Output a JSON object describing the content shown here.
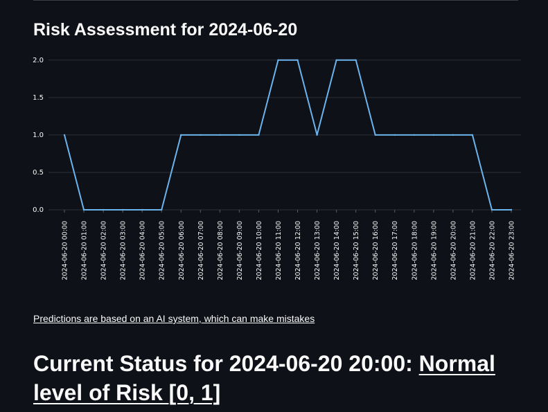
{
  "chart_data": {
    "type": "line",
    "title": "Risk Assessment for 2024-06-20",
    "xlabel": "",
    "ylabel": "",
    "ylim": [
      0,
      2.1
    ],
    "yticks": [
      "0.0",
      "0.5",
      "1.0",
      "1.5",
      "2.0"
    ],
    "ytick_values": [
      0,
      0.5,
      1,
      1.5,
      2
    ],
    "x": [
      "2024-06-20 00:00",
      "2024-06-20 01:00",
      "2024-06-20 02:00",
      "2024-06-20 03:00",
      "2024-06-20 04:00",
      "2024-06-20 05:00",
      "2024-06-20 06:00",
      "2024-06-20 07:00",
      "2024-06-20 08:00",
      "2024-06-20 09:00",
      "2024-06-20 10:00",
      "2024-06-20 11:00",
      "2024-06-20 12:00",
      "2024-06-20 13:00",
      "2024-06-20 14:00",
      "2024-06-20 15:00",
      "2024-06-20 16:00",
      "2024-06-20 17:00",
      "2024-06-20 18:00",
      "2024-06-20 19:00",
      "2024-06-20 20:00",
      "2024-06-20 21:00",
      "2024-06-20 22:00",
      "2024-06-20 23:00"
    ],
    "series": [
      {
        "values": [
          1,
          0,
          0,
          0,
          0,
          0,
          1,
          1,
          1,
          1,
          1,
          2,
          2,
          1,
          2,
          2,
          1,
          1,
          1,
          1,
          1,
          1,
          0,
          0
        ]
      }
    ],
    "grid": true,
    "line_color": "#6cb4ee"
  },
  "disclaimer": "Predictions are based on an AI system, which can make mistakes",
  "status": {
    "prefix": "Current Status for 2024-06-20 20:00: ",
    "level": "Normal level of Risk [0, 1]"
  },
  "colors": {
    "background": "#0e1117",
    "text": "#fafafa",
    "grid": "#2e3138",
    "line": "#6cb4ee"
  }
}
